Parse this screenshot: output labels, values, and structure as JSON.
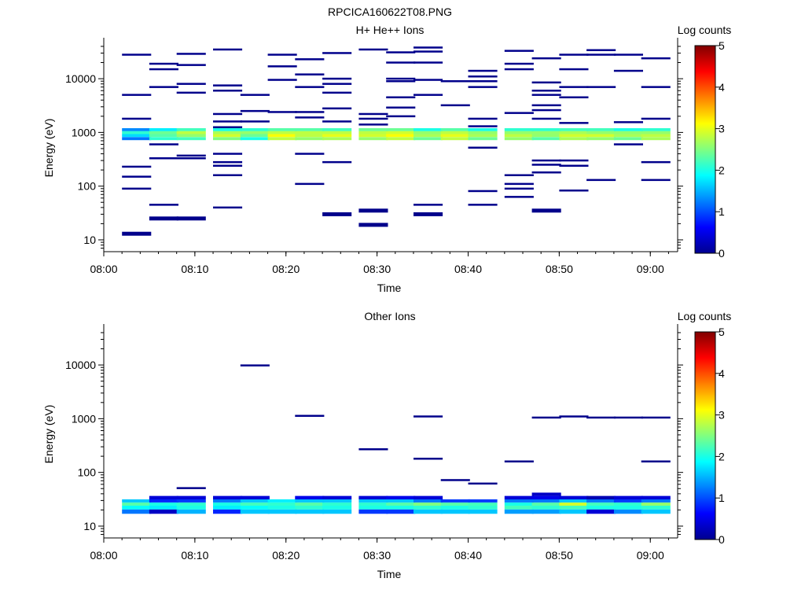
{
  "figure": {
    "title": "RPCICA160622T08.PNG"
  },
  "colors": {
    "fill_dark": "#00008b",
    "axis": "#000000",
    "colormap": [
      "#00008f",
      "#0000ff",
      "#0080ff",
      "#00ffff",
      "#80ff80",
      "#ffff00",
      "#ff8000",
      "#ff0000",
      "#800000"
    ]
  },
  "chart_data": [
    {
      "type": "heatmap",
      "title": "H+ He++ Ions",
      "xlabel": "Time",
      "ylabel": "Energy (eV)",
      "x_ticks": [
        "08:00",
        "08:10",
        "08:20",
        "08:30",
        "08:40",
        "08:50",
        "09:00"
      ],
      "y_ticks": [
        "10",
        "100",
        "1000",
        "10000"
      ],
      "xlim_minutes": [
        0,
        63
      ],
      "ylim_log10": [
        0.78,
        4.66
      ],
      "y_scale": "log",
      "colorbar": {
        "label": "Log counts",
        "ticks": [
          "0",
          "1",
          "2",
          "3",
          "4",
          "5"
        ],
        "range": [
          0,
          5
        ]
      },
      "time_bins": [
        "08:02",
        "08:05",
        "08:08",
        "08:12",
        "08:15",
        "08:18",
        "08:21",
        "08:24",
        "08:28",
        "08:31",
        "08:34",
        "08:37",
        "08:40",
        "08:44",
        "08:47",
        "08:50",
        "08:53",
        "08:56",
        "08:59"
      ],
      "band_energy_bins_eV": [
        720,
        820,
        930,
        1060,
        1200
      ],
      "band_values": [
        [
          1.2,
          2.1,
          2.2,
          2.5,
          2.0,
          2.8,
          2.6,
          2.7,
          2.6,
          2.8,
          2.4,
          2.8,
          2.4,
          2.6,
          2.3,
          2.7,
          2.6,
          2.4,
          2.7
        ],
        [
          1.7,
          2.3,
          2.6,
          2.9,
          2.4,
          3.1,
          2.8,
          3.0,
          2.9,
          3.1,
          2.7,
          3.0,
          2.7,
          2.8,
          2.6,
          2.9,
          2.9,
          2.7,
          2.8
        ],
        [
          2.1,
          2.4,
          2.8,
          2.7,
          2.6,
          2.8,
          2.8,
          2.8,
          2.8,
          2.9,
          2.6,
          2.8,
          2.6,
          2.6,
          2.6,
          2.7,
          2.6,
          2.6,
          2.6
        ],
        [
          1.3,
          1.8,
          2.2,
          2.0,
          2.1,
          2.3,
          2.3,
          2.2,
          2.4,
          2.4,
          2.0,
          2.3,
          2.0,
          2.1,
          2.1,
          2.2,
          2.2,
          2.0,
          2.1
        ]
      ],
      "sparse_points": [
        {
          "t": "08:02",
          "e": [
            28000,
            5000,
            1800,
            230,
            150,
            90,
            13
          ]
        },
        {
          "t": "08:05",
          "e": [
            19000,
            15000,
            7000,
            600,
            330,
            45,
            25
          ]
        },
        {
          "t": "08:08",
          "e": [
            29000,
            18000,
            8000,
            5500,
            370,
            330,
            25
          ]
        },
        {
          "t": "08:12",
          "e": [
            35000,
            7500,
            6000,
            2200,
            1600,
            1250,
            400,
            280,
            240,
            160,
            40
          ]
        },
        {
          "t": "08:15",
          "e": [
            5000,
            2500,
            1600
          ]
        },
        {
          "t": "08:18",
          "e": [
            28000,
            17000,
            9500,
            2400
          ]
        },
        {
          "t": "08:21",
          "e": [
            23000,
            12000,
            7000,
            2400,
            1900,
            400,
            110
          ]
        },
        {
          "t": "08:24",
          "e": [
            30000,
            10000,
            8000,
            5500,
            2800,
            1600,
            280,
            30
          ]
        },
        {
          "t": "08:28",
          "e": [
            35000,
            2200,
            1800,
            1400,
            35,
            19
          ]
        },
        {
          "t": "08:31",
          "e": [
            31000,
            20000,
            10000,
            9000,
            4500,
            2900,
            2000
          ]
        },
        {
          "t": "08:34",
          "e": [
            38000,
            32000,
            20000,
            9500,
            5000,
            45,
            30
          ]
        },
        {
          "t": "08:37",
          "e": [
            9000,
            3200
          ]
        },
        {
          "t": "08:40",
          "e": [
            14000,
            11000,
            9000,
            7000,
            1800,
            1300,
            520,
            81,
            45
          ]
        },
        {
          "t": "08:44",
          "e": [
            33000,
            19000,
            15000,
            2300,
            160,
            110,
            90,
            63
          ]
        },
        {
          "t": "08:47",
          "e": [
            24000,
            8500,
            6000,
            5000,
            3200,
            2600,
            1800,
            300,
            250,
            180,
            35
          ]
        },
        {
          "t": "08:50",
          "e": [
            28000,
            15000,
            7000,
            4500,
            1500,
            300,
            240,
            83
          ]
        },
        {
          "t": "08:53",
          "e": [
            34000,
            28000,
            7000,
            130
          ]
        },
        {
          "t": "08:56",
          "e": [
            28000,
            14000,
            1550,
            600
          ]
        },
        {
          "t": "08:59",
          "e": [
            24000,
            7000,
            1800,
            280,
            130
          ]
        }
      ]
    },
    {
      "type": "heatmap",
      "title": "Other Ions",
      "xlabel": "Time",
      "ylabel": "Energy (eV)",
      "x_ticks": [
        "08:00",
        "08:10",
        "08:20",
        "08:30",
        "08:40",
        "08:50",
        "09:00"
      ],
      "y_ticks": [
        "10",
        "100",
        "1000",
        "10000"
      ],
      "xlim_minutes": [
        0,
        63
      ],
      "ylim_log10": [
        0.78,
        4.66
      ],
      "y_scale": "log",
      "colorbar": {
        "label": "Log counts",
        "ticks": [
          "0",
          "1",
          "2",
          "3",
          "4",
          "5"
        ],
        "range": [
          0,
          5
        ]
      },
      "time_bins": [
        "08:02",
        "08:05",
        "08:08",
        "08:12",
        "08:15",
        "08:18",
        "08:21",
        "08:24",
        "08:28",
        "08:31",
        "08:34",
        "08:37",
        "08:40",
        "08:44",
        "08:47",
        "08:50",
        "08:53",
        "08:56",
        "08:59"
      ],
      "band_energy_bins_eV": [
        17,
        20.5,
        24,
        27.5,
        31.5,
        36.5,
        42
      ],
      "band_values": [
        [
          1.2,
          0.3,
          1.5,
          0.8,
          1.6,
          1.6,
          1.6,
          1.6,
          0.9,
          0.9,
          1.6,
          1.6,
          1.6,
          1.4,
          1.4,
          1.6,
          0.4,
          1.3,
          1.6
        ],
        [
          1.9,
          1.8,
          2.0,
          1.8,
          1.9,
          2.0,
          2.1,
          2.0,
          2.0,
          2.0,
          2.1,
          2.0,
          2.1,
          2.2,
          2.1,
          2.2,
          2.0,
          2.0,
          2.1
        ],
        [
          2.3,
          2.0,
          2.1,
          2.0,
          2.2,
          2.1,
          2.3,
          2.1,
          2.1,
          2.3,
          2.5,
          2.3,
          2.2,
          2.0,
          2.3,
          2.9,
          2.2,
          2.1,
          2.6
        ],
        [
          1.6,
          0.8,
          0.9,
          1.2,
          1.6,
          1.8,
          1.6,
          1.6,
          1.6,
          1.6,
          1.2,
          0.9,
          0.9,
          1.2,
          1.2,
          1.6,
          1.2,
          0.9,
          1.2
        ],
        [
          0,
          0.4,
          0.4,
          0.4,
          0.4,
          0,
          0.5,
          0.4,
          0.4,
          0.5,
          0.4,
          0,
          0,
          0.4,
          0.5,
          0.4,
          0.2,
          0.4,
          0.4
        ],
        [
          0,
          0,
          0,
          0,
          0,
          0,
          0,
          0,
          0,
          0,
          0,
          0,
          0,
          0,
          0.3,
          0,
          0,
          0,
          0
        ]
      ],
      "sparse_points": [
        {
          "t": "08:08",
          "e": [
            51
          ]
        },
        {
          "t": "08:15",
          "e": [
            9800
          ]
        },
        {
          "t": "08:21",
          "e": [
            1130
          ]
        },
        {
          "t": "08:28",
          "e": [
            270
          ]
        },
        {
          "t": "08:34",
          "e": [
            1100,
            180
          ]
        },
        {
          "t": "08:37",
          "e": [
            72
          ]
        },
        {
          "t": "08:40",
          "e": [
            62
          ]
        },
        {
          "t": "08:44",
          "e": [
            160
          ]
        },
        {
          "t": "08:47",
          "e": [
            1050
          ]
        },
        {
          "t": "08:50",
          "e": [
            1100
          ]
        },
        {
          "t": "08:53",
          "e": [
            1050
          ]
        },
        {
          "t": "08:56",
          "e": [
            1050
          ]
        },
        {
          "t": "08:59",
          "e": [
            1050,
            160
          ]
        }
      ]
    }
  ]
}
